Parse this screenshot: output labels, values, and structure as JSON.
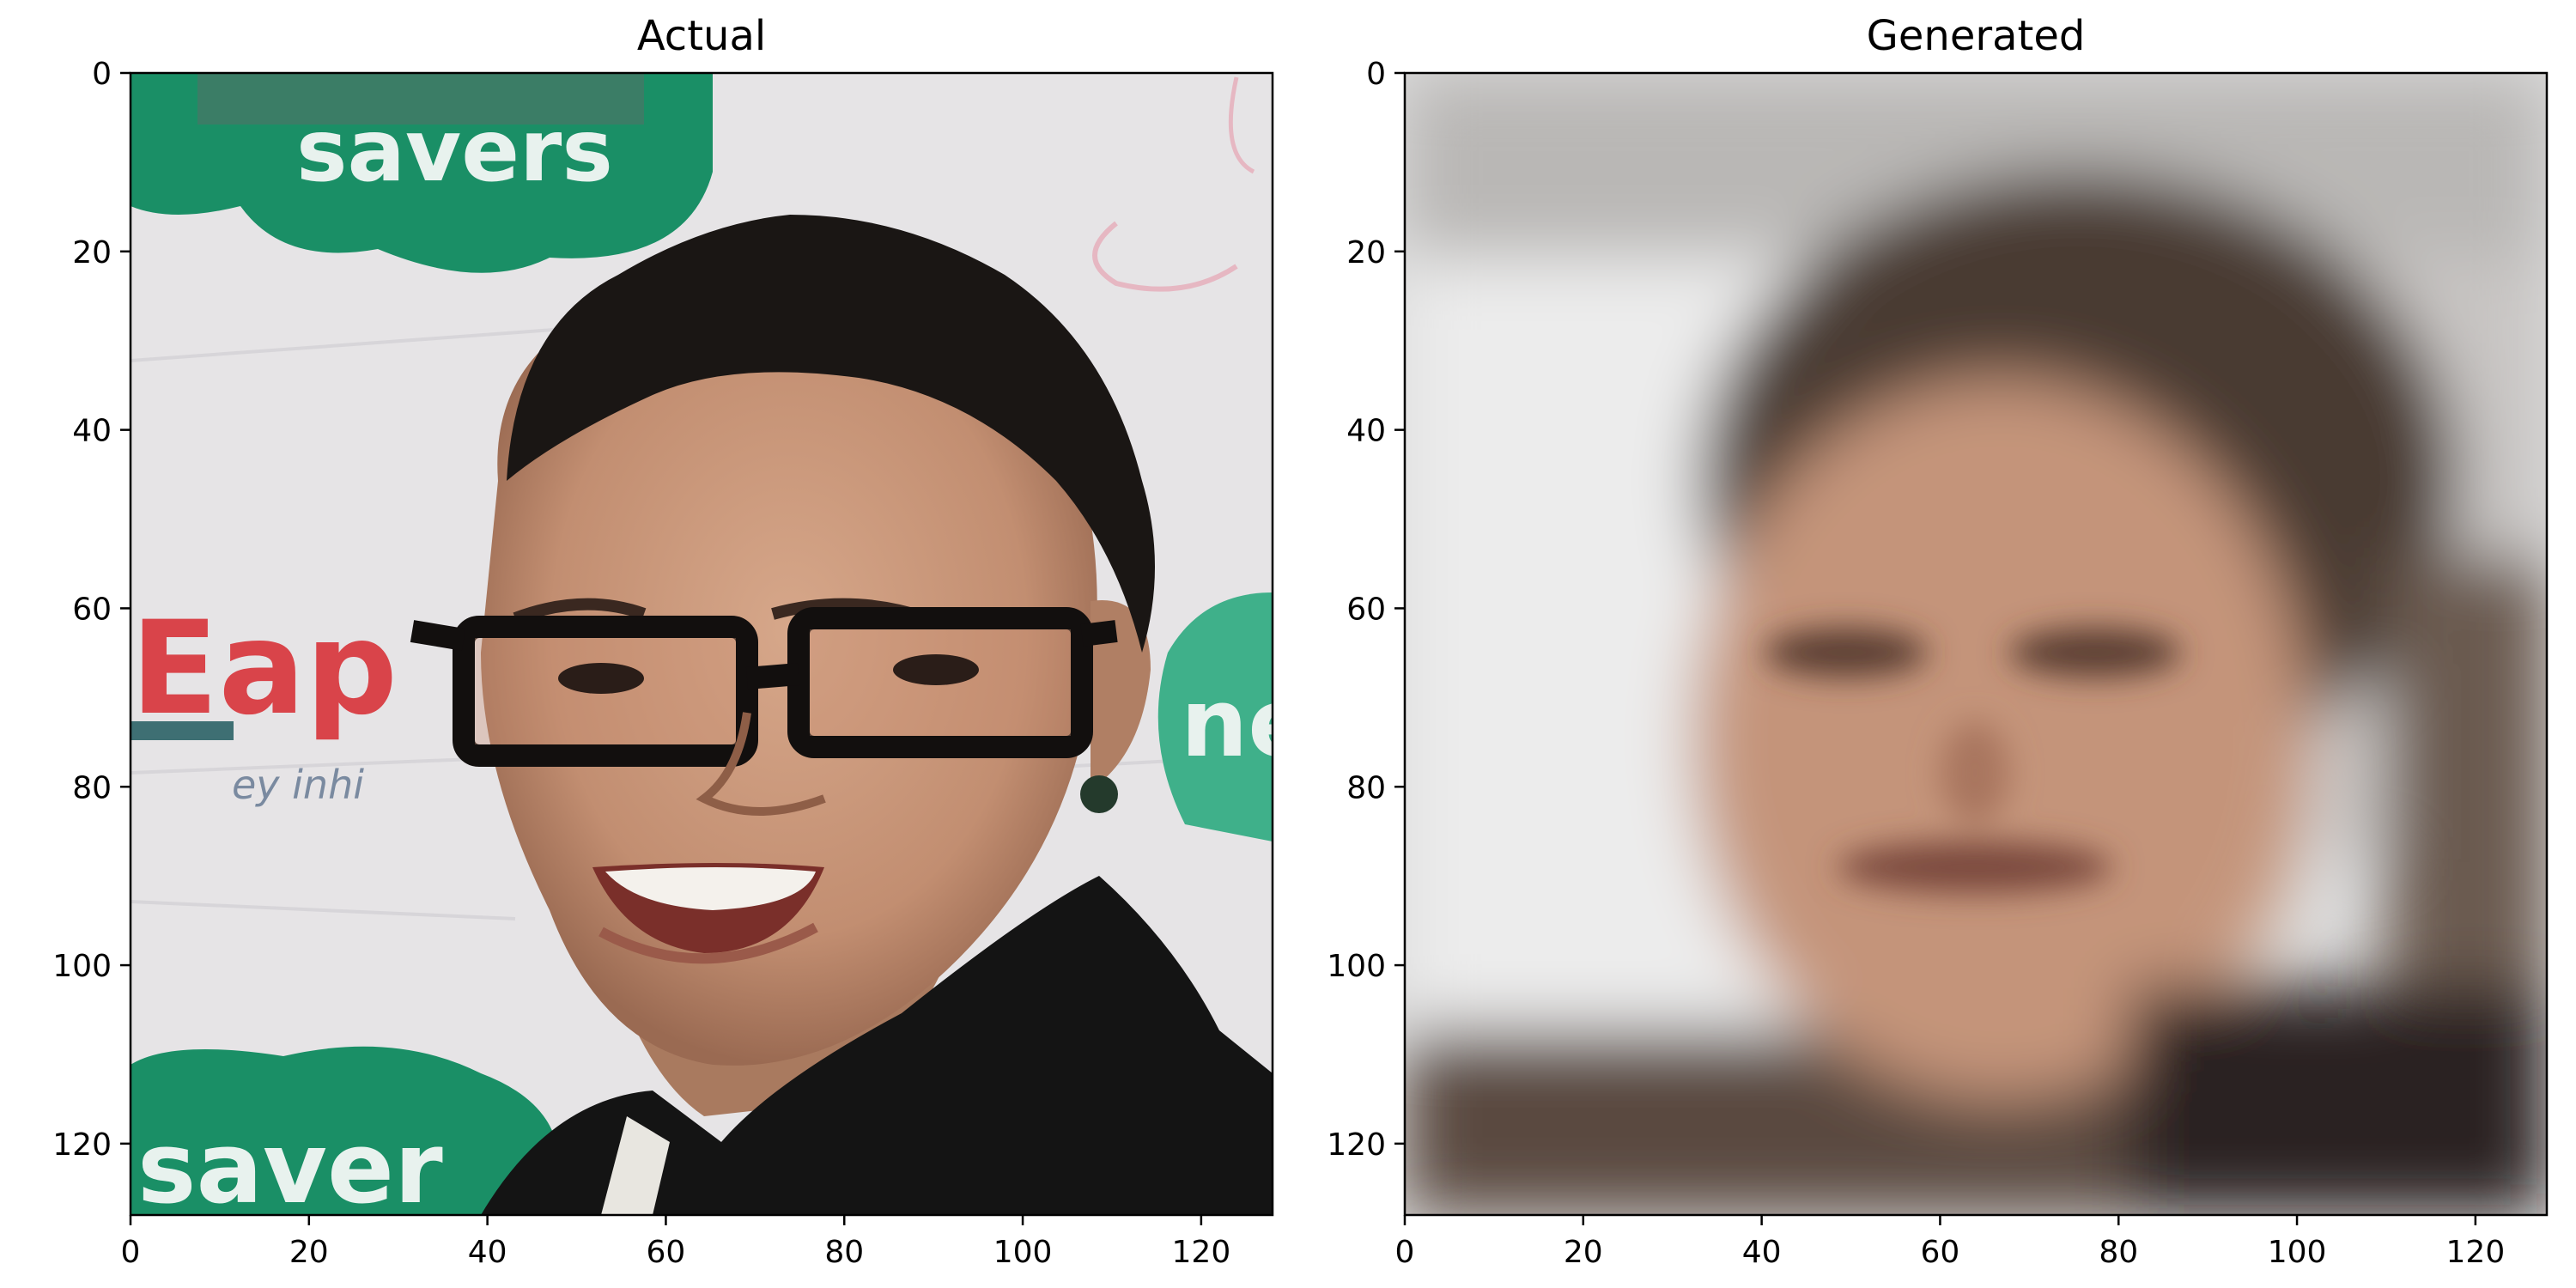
{
  "figure": {
    "panels": [
      {
        "id": "actual",
        "title": "Actual",
        "image": "photo of a smiling person with short dark hair and thick black rectangular glasses in front of a sponsor backdrop",
        "backdrop_text_top": "savers",
        "backdrop_text_left": "Eap",
        "backdrop_text_right": "ne",
        "backdrop_text_small": "ey inhi",
        "backdrop_text_bottom": "saver",
        "xticks": [
          "0",
          "20",
          "40",
          "60",
          "80",
          "100",
          "120"
        ],
        "yticks": [
          "0",
          "20",
          "40",
          "60",
          "80",
          "100",
          "120"
        ]
      },
      {
        "id": "generated",
        "title": "Generated",
        "image": "blurry reconstructed face with brown hair on light background",
        "xticks": [
          "0",
          "20",
          "40",
          "60",
          "80",
          "100",
          "120"
        ],
        "yticks": [
          "0",
          "20",
          "40",
          "60",
          "80",
          "100",
          "120"
        ]
      }
    ],
    "colors": {
      "backdrop_green": "#1a8f66",
      "backdrop_red": "#d9444a",
      "skin": "#c9967a",
      "hair": "#1a1614",
      "jacket": "#141414"
    }
  }
}
